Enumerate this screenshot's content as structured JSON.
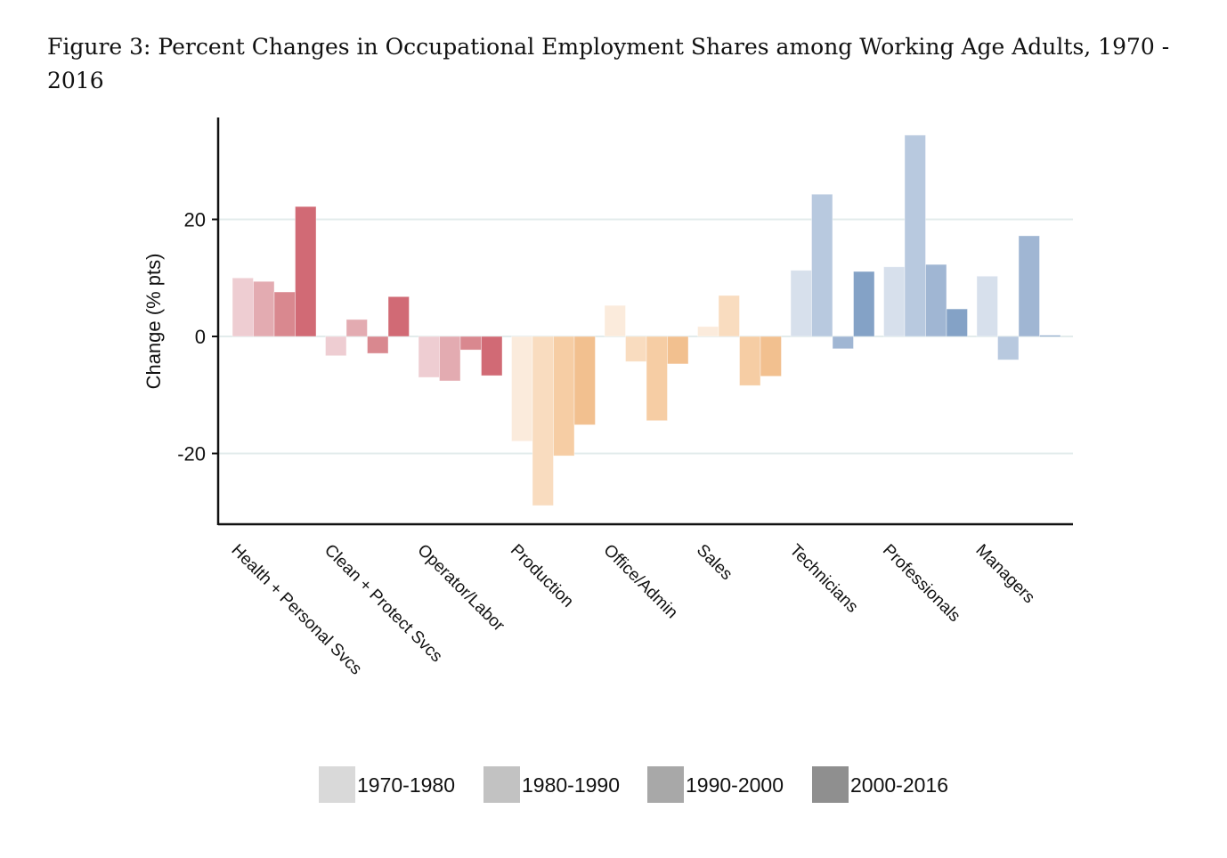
{
  "caption": "Figure 3:  Percent Changes in Occupational Employment Shares among Working Age Adults, 1970 - 2016",
  "chart_data": {
    "type": "bar",
    "title": "",
    "xlabel": "",
    "ylabel": "Change (% pts)",
    "ylim": [
      -32,
      37
    ],
    "yticks": [
      -20,
      0,
      20
    ],
    "ytick_labels": [
      "-20",
      "0",
      "20"
    ],
    "grid": true,
    "legend_position": "bottom",
    "categories": [
      "Health + Personal Svcs",
      "Clean + Protect Svcs",
      "Operator/Labor",
      "Production",
      "Office/Admin",
      "Sales",
      "Technicians",
      "Professionals",
      "Managers"
    ],
    "series": [
      {
        "name": "1970-1980",
        "values": [
          10.0,
          -3.3,
          -7.0,
          -17.9,
          5.3,
          1.7,
          11.3,
          11.9,
          10.3
        ]
      },
      {
        "name": "1980-1990",
        "values": [
          9.4,
          2.9,
          -7.6,
          -28.9,
          -4.3,
          7.0,
          24.3,
          34.4,
          -4.0
        ]
      },
      {
        "name": "1990-2000",
        "values": [
          7.6,
          -2.9,
          -2.3,
          -20.4,
          -14.4,
          -8.4,
          -2.1,
          12.3,
          17.2
        ]
      },
      {
        "name": "2000-2016",
        "values": [
          22.2,
          6.8,
          -6.7,
          -15.1,
          -4.7,
          -6.8,
          11.1,
          4.7,
          0.2
        ]
      }
    ],
    "category_colors": [
      [
        "#eecdd2",
        "#e3abb1",
        "#d9888f",
        "#d16a75"
      ],
      [
        "#eecdd2",
        "#e3abb1",
        "#d9888f",
        "#d16a75"
      ],
      [
        "#eecdd2",
        "#e3abb1",
        "#d9888f",
        "#d16a75"
      ],
      [
        "#fbebdc",
        "#f9dcbf",
        "#f6cda4",
        "#f2c08f"
      ],
      [
        "#fbebdc",
        "#f9dcbf",
        "#f6cda4",
        "#f2c08f"
      ],
      [
        "#fbebdc",
        "#f9dcbf",
        "#f6cda4",
        "#f2c08f"
      ],
      [
        "#d7e0ec",
        "#b8c9df",
        "#a0b6d3",
        "#84a2c6"
      ],
      [
        "#d7e0ec",
        "#b8c9df",
        "#a0b6d3",
        "#84a2c6"
      ],
      [
        "#d7e0ec",
        "#b8c9df",
        "#a0b6d3",
        "#84a2c6"
      ]
    ],
    "legend_colors": [
      "#d9d9d9",
      "#c2c2c2",
      "#a8a8a8",
      "#8f8f8f"
    ]
  }
}
